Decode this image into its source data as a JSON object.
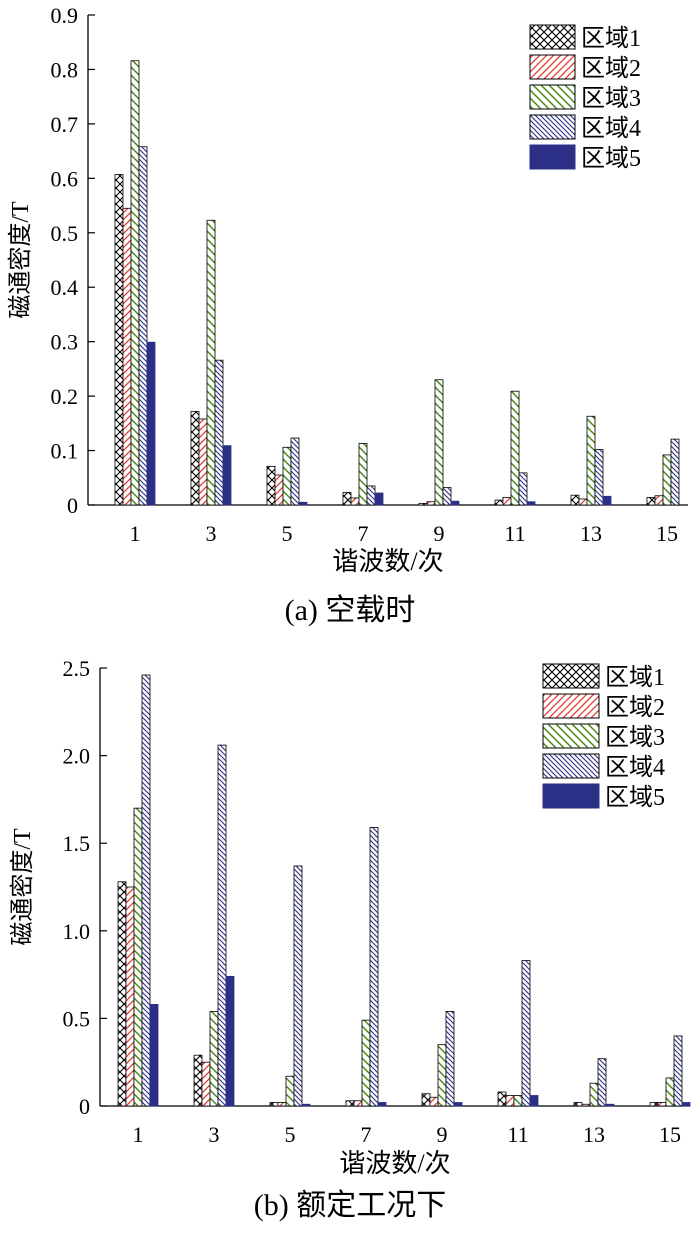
{
  "chart_data": [
    {
      "type": "bar",
      "caption": "(a)  空载时",
      "xlabel": "谐波数/次",
      "ylabel": "磁通密度/T",
      "categories": [
        "1",
        "3",
        "5",
        "7",
        "9",
        "11",
        "13",
        "15"
      ],
      "ylim": [
        0,
        0.9
      ],
      "yticks": [
        "0",
        "0.1",
        "0.2",
        "0.3",
        "0.4",
        "0.5",
        "0.6",
        "0.7",
        "0.8",
        "0.9"
      ],
      "legend_position": "top-right",
      "series": [
        {
          "name": "区域1",
          "values": [
            0.607,
            0.172,
            0.071,
            0.023,
            0.003,
            0.009,
            0.018,
            0.014
          ]
        },
        {
          "name": "区域2",
          "values": [
            0.545,
            0.158,
            0.055,
            0.013,
            0.006,
            0.014,
            0.011,
            0.017
          ]
        },
        {
          "name": "区域3",
          "values": [
            0.816,
            0.523,
            0.106,
            0.113,
            0.23,
            0.209,
            0.163,
            0.092
          ]
        },
        {
          "name": "区域4",
          "values": [
            0.658,
            0.266,
            0.123,
            0.035,
            0.032,
            0.059,
            0.102,
            0.121
          ]
        },
        {
          "name": "区域5",
          "values": [
            0.299,
            0.109,
            0.005,
            0.022,
            0.007,
            0.006,
            0.016,
            0.0
          ]
        }
      ]
    },
    {
      "type": "bar",
      "caption": "(b)  额定工况下",
      "xlabel": "谐波数/次",
      "ylabel": "磁通密度/T",
      "categories": [
        "1",
        "3",
        "5",
        "7",
        "9",
        "11",
        "13",
        "15"
      ],
      "ylim": [
        0,
        2.5
      ],
      "yticks": [
        "0",
        "0.5",
        "1.0",
        "1.5",
        "2.0",
        "2.5"
      ],
      "legend_position": "top-right",
      "series": [
        {
          "name": "区域1",
          "values": [
            1.28,
            0.29,
            0.02,
            0.03,
            0.07,
            0.08,
            0.02,
            0.02
          ]
        },
        {
          "name": "区域2",
          "values": [
            1.25,
            0.25,
            0.02,
            0.03,
            0.05,
            0.06,
            0.01,
            0.02
          ]
        },
        {
          "name": "区域3",
          "values": [
            1.7,
            0.54,
            0.17,
            0.49,
            0.35,
            0.06,
            0.13,
            0.16
          ]
        },
        {
          "name": "区域4",
          "values": [
            2.46,
            2.06,
            1.37,
            1.59,
            0.54,
            0.83,
            0.27,
            0.4
          ]
        },
        {
          "name": "区域5",
          "values": [
            0.58,
            0.74,
            0.01,
            0.02,
            0.02,
            0.06,
            0.01,
            0.02
          ]
        }
      ]
    }
  ],
  "series_styles": {
    "colors": [
      "#000000",
      "#e23b2e",
      "#4a8a1c",
      "#2b2f86",
      "#2b2f86"
    ],
    "patterns": [
      "crosshatch",
      "diag-red",
      "diag-green",
      "diag-blue",
      "solid-navy"
    ]
  }
}
